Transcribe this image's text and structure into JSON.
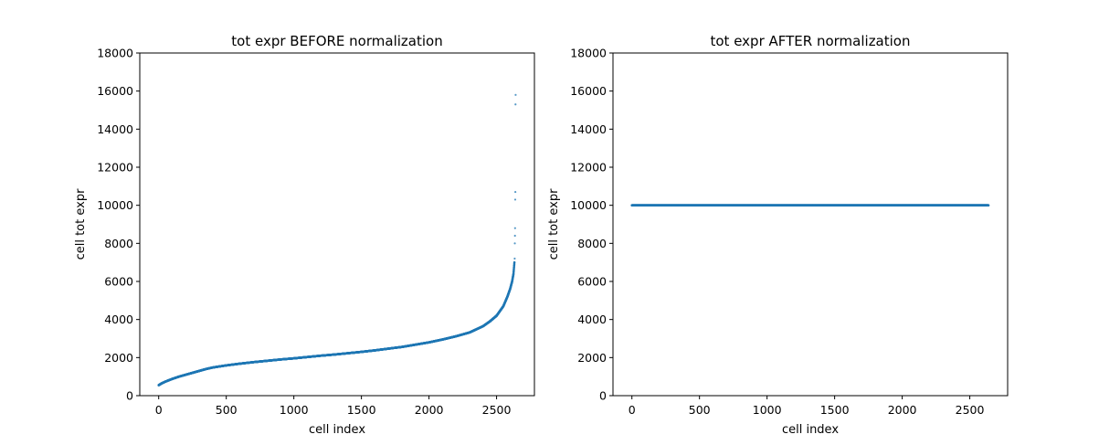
{
  "colors": {
    "series": "#1f77b4",
    "axes": "#000000",
    "background": "#ffffff"
  },
  "chart_data": [
    {
      "type": "scatter",
      "title": "tot expr BEFORE normalization",
      "xlabel": "cell index",
      "ylabel": "cell tot expr",
      "xlim": [
        -140,
        2780
      ],
      "ylim": [
        0,
        18000
      ],
      "xticks": [
        0,
        500,
        1000,
        1500,
        2000,
        2500
      ],
      "yticks": [
        0,
        2000,
        4000,
        6000,
        8000,
        10000,
        12000,
        14000,
        16000,
        18000
      ],
      "grid": false,
      "n_points": 2638,
      "curve": [
        [
          0,
          550
        ],
        [
          20,
          640
        ],
        [
          50,
          740
        ],
        [
          100,
          880
        ],
        [
          150,
          1000
        ],
        [
          200,
          1100
        ],
        [
          250,
          1200
        ],
        [
          300,
          1300
        ],
        [
          350,
          1400
        ],
        [
          400,
          1480
        ],
        [
          500,
          1590
        ],
        [
          600,
          1680
        ],
        [
          700,
          1760
        ],
        [
          800,
          1830
        ],
        [
          900,
          1900
        ],
        [
          1000,
          1960
        ],
        [
          1100,
          2030
        ],
        [
          1200,
          2100
        ],
        [
          1300,
          2160
        ],
        [
          1400,
          2230
        ],
        [
          1500,
          2300
        ],
        [
          1600,
          2380
        ],
        [
          1700,
          2470
        ],
        [
          1800,
          2560
        ],
        [
          1900,
          2680
        ],
        [
          2000,
          2800
        ],
        [
          2100,
          2950
        ],
        [
          2200,
          3120
        ],
        [
          2300,
          3320
        ],
        [
          2400,
          3650
        ],
        [
          2450,
          3900
        ],
        [
          2500,
          4200
        ],
        [
          2550,
          4700
        ],
        [
          2580,
          5200
        ],
        [
          2600,
          5600
        ],
        [
          2615,
          6000
        ],
        [
          2625,
          6400
        ],
        [
          2632,
          7000
        ]
      ],
      "outliers": [
        [
          2634,
          7200
        ],
        [
          2635,
          8000
        ],
        [
          2636,
          8400
        ],
        [
          2637,
          8800
        ],
        [
          2638,
          10300
        ],
        [
          2639,
          10700
        ],
        [
          2640,
          15300
        ],
        [
          2641,
          15800
        ]
      ]
    },
    {
      "type": "scatter",
      "title": "tot expr AFTER normalization",
      "xlabel": "cell index",
      "ylabel": "cell tot expr",
      "xlim": [
        -140,
        2780
      ],
      "ylim": [
        0,
        18000
      ],
      "xticks": [
        0,
        500,
        1000,
        1500,
        2000,
        2500
      ],
      "yticks": [
        0,
        2000,
        4000,
        6000,
        8000,
        10000,
        12000,
        14000,
        16000,
        18000
      ],
      "grid": false,
      "n_points": 2638,
      "curve": [
        [
          0,
          10000
        ],
        [
          2638,
          10000
        ]
      ],
      "outliers": []
    }
  ]
}
